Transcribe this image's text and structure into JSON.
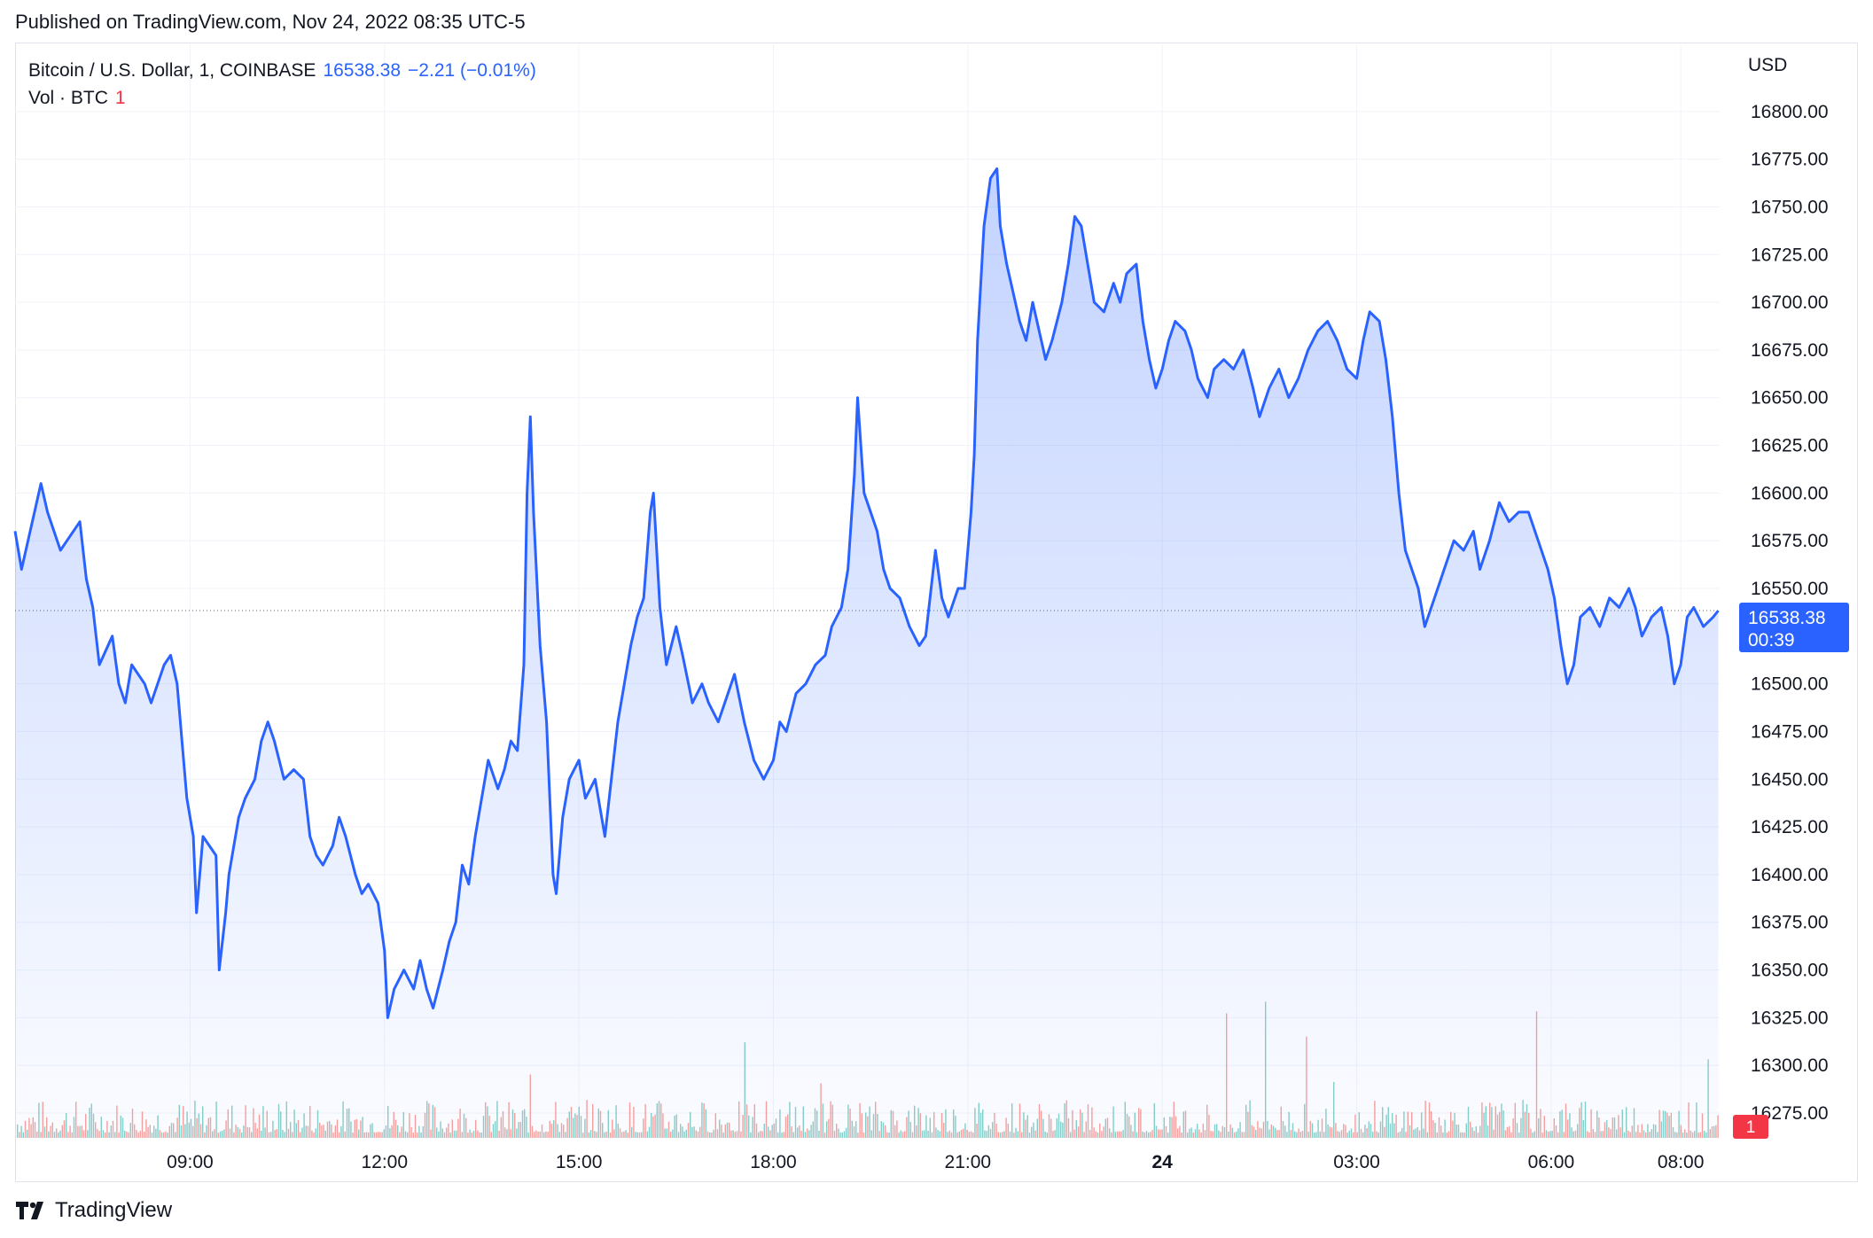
{
  "header": {
    "published": "Published on TradingView.com, Nov 24, 2022 08:35 UTC-5"
  },
  "legend": {
    "symbol": "Bitcoin / U.S. Dollar, 1, COINBASE",
    "last_price": "16538.38",
    "change": "−2.21 (−0.01%)",
    "volume_label": "Vol · BTC",
    "volume_value": "1"
  },
  "price_tag": {
    "price": "16538.38",
    "countdown": "00:39",
    "color": "#2962ff"
  },
  "volume_tag": {
    "value": "1",
    "color": "#f23645"
  },
  "footer": {
    "brand": "TradingView",
    "logo_icon": "tradingview-logo-icon"
  },
  "colors": {
    "line": "#2962ff",
    "area_top": "#2962ff",
    "vol_up": "#26a69a",
    "vol_down": "#ef5350",
    "grid": "#f0f3fa",
    "dotted_price_line": "#2962ff"
  },
  "chart_data": {
    "type": "area",
    "title": "Bitcoin / U.S. Dollar, 1, COINBASE",
    "y_unit": "USD",
    "ylim": [
      16262,
      16812
    ],
    "y_ticks": [
      "16800.00",
      "16775.00",
      "16750.00",
      "16725.00",
      "16700.00",
      "16675.00",
      "16650.00",
      "16625.00",
      "16600.00",
      "16575.00",
      "16550.00",
      "16500.00",
      "16475.00",
      "16450.00",
      "16425.00",
      "16400.00",
      "16375.00",
      "16350.00",
      "16325.00",
      "16300.00",
      "16275.00"
    ],
    "x_ticks": [
      {
        "label": "09:00",
        "hour": 9,
        "bold": false
      },
      {
        "label": "12:00",
        "hour": 12,
        "bold": false
      },
      {
        "label": "15:00",
        "hour": 15,
        "bold": false
      },
      {
        "label": "18:00",
        "hour": 18,
        "bold": false
      },
      {
        "label": "21:00",
        "hour": 21,
        "bold": false
      },
      {
        "label": "24",
        "hour": 24,
        "bold": true
      },
      {
        "label": "03:00",
        "hour": 27,
        "bold": false
      },
      {
        "label": "06:00",
        "hour": 30,
        "bold": false
      },
      {
        "label": "08:00",
        "hour": 32,
        "bold": false
      }
    ],
    "x_range_hours": [
      6.3,
      32.6
    ],
    "x_unit": "hours from Nov 23 00:00 (UTC-5)",
    "grid": true,
    "last_price": 16538.38,
    "series": [
      {
        "kind": "price",
        "points": [
          [
            6.3,
            16580
          ],
          [
            6.4,
            16560
          ],
          [
            6.6,
            16590
          ],
          [
            6.7,
            16605
          ],
          [
            6.8,
            16590
          ],
          [
            7.0,
            16570
          ],
          [
            7.1,
            16575
          ],
          [
            7.3,
            16585
          ],
          [
            7.4,
            16555
          ],
          [
            7.5,
            16540
          ],
          [
            7.6,
            16510
          ],
          [
            7.8,
            16525
          ],
          [
            7.9,
            16500
          ],
          [
            8.0,
            16490
          ],
          [
            8.1,
            16510
          ],
          [
            8.3,
            16500
          ],
          [
            8.4,
            16490
          ],
          [
            8.6,
            16510
          ],
          [
            8.7,
            16515
          ],
          [
            8.8,
            16500
          ],
          [
            8.95,
            16440
          ],
          [
            9.05,
            16420
          ],
          [
            9.1,
            16380
          ],
          [
            9.2,
            16420
          ],
          [
            9.4,
            16410
          ],
          [
            9.45,
            16350
          ],
          [
            9.55,
            16380
          ],
          [
            9.6,
            16400
          ],
          [
            9.75,
            16430
          ],
          [
            9.85,
            16440
          ],
          [
            10.0,
            16450
          ],
          [
            10.1,
            16470
          ],
          [
            10.2,
            16480
          ],
          [
            10.3,
            16470
          ],
          [
            10.45,
            16450
          ],
          [
            10.6,
            16455
          ],
          [
            10.75,
            16450
          ],
          [
            10.85,
            16420
          ],
          [
            10.95,
            16410
          ],
          [
            11.05,
            16405
          ],
          [
            11.2,
            16415
          ],
          [
            11.3,
            16430
          ],
          [
            11.4,
            16420
          ],
          [
            11.55,
            16400
          ],
          [
            11.65,
            16390
          ],
          [
            11.75,
            16395
          ],
          [
            11.9,
            16385
          ],
          [
            12.0,
            16360
          ],
          [
            12.05,
            16325
          ],
          [
            12.15,
            16340
          ],
          [
            12.3,
            16350
          ],
          [
            12.45,
            16340
          ],
          [
            12.55,
            16355
          ],
          [
            12.65,
            16340
          ],
          [
            12.75,
            16330
          ],
          [
            12.9,
            16350
          ],
          [
            13.0,
            16365
          ],
          [
            13.1,
            16375
          ],
          [
            13.2,
            16405
          ],
          [
            13.3,
            16395
          ],
          [
            13.4,
            16420
          ],
          [
            13.5,
            16440
          ],
          [
            13.6,
            16460
          ],
          [
            13.75,
            16445
          ],
          [
            13.85,
            16455
          ],
          [
            13.95,
            16470
          ],
          [
            14.05,
            16465
          ],
          [
            14.15,
            16510
          ],
          [
            14.2,
            16600
          ],
          [
            14.25,
            16640
          ],
          [
            14.3,
            16590
          ],
          [
            14.4,
            16520
          ],
          [
            14.5,
            16480
          ],
          [
            14.6,
            16400
          ],
          [
            14.65,
            16390
          ],
          [
            14.75,
            16430
          ],
          [
            14.85,
            16450
          ],
          [
            15.0,
            16460
          ],
          [
            15.1,
            16440
          ],
          [
            15.25,
            16450
          ],
          [
            15.4,
            16420
          ],
          [
            15.5,
            16450
          ],
          [
            15.6,
            16480
          ],
          [
            15.7,
            16500
          ],
          [
            15.8,
            16520
          ],
          [
            15.9,
            16535
          ],
          [
            16.0,
            16545
          ],
          [
            16.1,
            16590
          ],
          [
            16.15,
            16600
          ],
          [
            16.25,
            16540
          ],
          [
            16.35,
            16510
          ],
          [
            16.5,
            16530
          ],
          [
            16.6,
            16515
          ],
          [
            16.75,
            16490
          ],
          [
            16.9,
            16500
          ],
          [
            17.0,
            16490
          ],
          [
            17.15,
            16480
          ],
          [
            17.3,
            16495
          ],
          [
            17.4,
            16505
          ],
          [
            17.55,
            16480
          ],
          [
            17.7,
            16460
          ],
          [
            17.85,
            16450
          ],
          [
            18.0,
            16460
          ],
          [
            18.1,
            16480
          ],
          [
            18.2,
            16475
          ],
          [
            18.35,
            16495
          ],
          [
            18.5,
            16500
          ],
          [
            18.65,
            16510
          ],
          [
            18.8,
            16515
          ],
          [
            18.9,
            16530
          ],
          [
            19.05,
            16540
          ],
          [
            19.15,
            16560
          ],
          [
            19.25,
            16610
          ],
          [
            19.3,
            16650
          ],
          [
            19.4,
            16600
          ],
          [
            19.5,
            16590
          ],
          [
            19.6,
            16580
          ],
          [
            19.7,
            16560
          ],
          [
            19.8,
            16550
          ],
          [
            19.95,
            16545
          ],
          [
            20.1,
            16530
          ],
          [
            20.25,
            16520
          ],
          [
            20.35,
            16525
          ],
          [
            20.5,
            16570
          ],
          [
            20.6,
            16545
          ],
          [
            20.7,
            16535
          ],
          [
            20.85,
            16550
          ],
          [
            20.95,
            16550
          ],
          [
            21.05,
            16590
          ],
          [
            21.1,
            16620
          ],
          [
            21.15,
            16680
          ],
          [
            21.25,
            16740
          ],
          [
            21.35,
            16765
          ],
          [
            21.45,
            16770
          ],
          [
            21.5,
            16740
          ],
          [
            21.6,
            16720
          ],
          [
            21.7,
            16705
          ],
          [
            21.8,
            16690
          ],
          [
            21.9,
            16680
          ],
          [
            22.0,
            16700
          ],
          [
            22.1,
            16685
          ],
          [
            22.2,
            16670
          ],
          [
            22.3,
            16680
          ],
          [
            22.45,
            16700
          ],
          [
            22.55,
            16720
          ],
          [
            22.65,
            16745
          ],
          [
            22.75,
            16740
          ],
          [
            22.85,
            16720
          ],
          [
            22.95,
            16700
          ],
          [
            23.1,
            16695
          ],
          [
            23.25,
            16710
          ],
          [
            23.35,
            16700
          ],
          [
            23.45,
            16715
          ],
          [
            23.6,
            16720
          ],
          [
            23.7,
            16690
          ],
          [
            23.8,
            16670
          ],
          [
            23.9,
            16655
          ],
          [
            24.0,
            16665
          ],
          [
            24.1,
            16680
          ],
          [
            24.2,
            16690
          ],
          [
            24.35,
            16685
          ],
          [
            24.45,
            16675
          ],
          [
            24.55,
            16660
          ],
          [
            24.7,
            16650
          ],
          [
            24.8,
            16665
          ],
          [
            24.95,
            16670
          ],
          [
            25.1,
            16665
          ],
          [
            25.25,
            16675
          ],
          [
            25.4,
            16655
          ],
          [
            25.5,
            16640
          ],
          [
            25.65,
            16655
          ],
          [
            25.8,
            16665
          ],
          [
            25.95,
            16650
          ],
          [
            26.1,
            16660
          ],
          [
            26.25,
            16675
          ],
          [
            26.4,
            16685
          ],
          [
            26.55,
            16690
          ],
          [
            26.7,
            16680
          ],
          [
            26.85,
            16665
          ],
          [
            27.0,
            16660
          ],
          [
            27.1,
            16680
          ],
          [
            27.2,
            16695
          ],
          [
            27.35,
            16690
          ],
          [
            27.45,
            16670
          ],
          [
            27.55,
            16640
          ],
          [
            27.65,
            16600
          ],
          [
            27.75,
            16570
          ],
          [
            27.85,
            16560
          ],
          [
            27.95,
            16550
          ],
          [
            28.05,
            16530
          ],
          [
            28.2,
            16545
          ],
          [
            28.35,
            16560
          ],
          [
            28.5,
            16575
          ],
          [
            28.65,
            16570
          ],
          [
            28.8,
            16580
          ],
          [
            28.9,
            16560
          ],
          [
            29.05,
            16575
          ],
          [
            29.2,
            16595
          ],
          [
            29.35,
            16585
          ],
          [
            29.5,
            16590
          ],
          [
            29.65,
            16590
          ],
          [
            29.8,
            16575
          ],
          [
            29.95,
            16560
          ],
          [
            30.05,
            16545
          ],
          [
            30.15,
            16520
          ],
          [
            30.25,
            16500
          ],
          [
            30.35,
            16510
          ],
          [
            30.45,
            16535
          ],
          [
            30.6,
            16540
          ],
          [
            30.75,
            16530
          ],
          [
            30.9,
            16545
          ],
          [
            31.05,
            16540
          ],
          [
            31.2,
            16550
          ],
          [
            31.3,
            16540
          ],
          [
            31.4,
            16525
          ],
          [
            31.55,
            16535
          ],
          [
            31.7,
            16540
          ],
          [
            31.8,
            16525
          ],
          [
            31.9,
            16500
          ],
          [
            32.0,
            16510
          ],
          [
            32.1,
            16535
          ],
          [
            32.2,
            16540
          ],
          [
            32.35,
            16530
          ],
          [
            32.5,
            16535
          ],
          [
            32.58,
            16538.38
          ]
        ]
      }
    ]
  }
}
